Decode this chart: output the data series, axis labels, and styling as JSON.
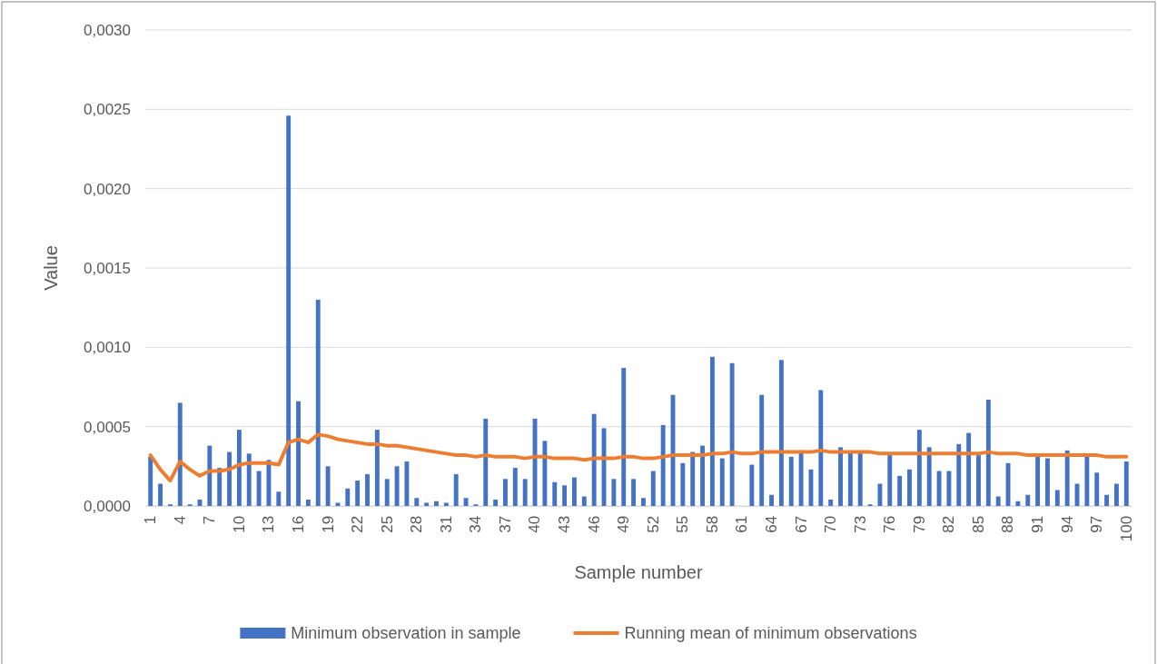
{
  "chart_data": {
    "type": "bar",
    "xlabel": "Sample number",
    "ylabel": "Value",
    "categories": [
      "1",
      null,
      null,
      "4",
      null,
      null,
      "7",
      null,
      null,
      "10",
      null,
      null,
      "13",
      null,
      null,
      "16",
      null,
      null,
      "19",
      null,
      null,
      "22",
      null,
      null,
      "25",
      null,
      null,
      "28",
      null,
      null,
      "31",
      null,
      null,
      "34",
      null,
      null,
      "37",
      null,
      null,
      "40",
      null,
      null,
      "43",
      null,
      null,
      "46",
      null,
      null,
      "49",
      null,
      null,
      "52",
      null,
      null,
      "55",
      null,
      null,
      "58",
      null,
      null,
      "61",
      null,
      null,
      "64",
      null,
      null,
      "67",
      null,
      null,
      "70",
      null,
      null,
      "73",
      null,
      null,
      "76",
      null,
      null,
      "79",
      null,
      null,
      "82",
      null,
      null,
      "85",
      null,
      null,
      "88",
      null,
      null,
      "91",
      null,
      null,
      "94",
      null,
      null,
      "97",
      null,
      null,
      "100"
    ],
    "series": [
      {
        "name": "Minimum observation in sample",
        "color": "#4472c4",
        "values": [
          0.00031,
          0.00014,
          1e-05,
          0.00065,
          1e-05,
          4e-05,
          0.00038,
          0.00024,
          0.00034,
          0.00048,
          0.00033,
          0.00022,
          0.00029,
          9e-05,
          0.00246,
          0.00066,
          4e-05,
          0.0013,
          0.00025,
          2e-05,
          0.00011,
          0.00016,
          0.0002,
          0.00048,
          0.00017,
          0.00025,
          0.00028,
          5e-05,
          2e-05,
          3e-05,
          2e-05,
          0.0002,
          5e-05,
          1e-05,
          0.00055,
          4e-05,
          0.00017,
          0.00024,
          0.00017,
          0.00055,
          0.00041,
          0.00015,
          0.00013,
          0.00018,
          6e-05,
          0.00058,
          0.00049,
          0.00017,
          0.00087,
          0.00017,
          5e-05,
          0.00022,
          0.00051,
          0.0007,
          0.00027,
          0.00034,
          0.00038,
          0.00094,
          0.0003,
          0.0009,
          0,
          0.00026,
          0.0007,
          7e-05,
          0.00092,
          0.00031,
          0.00035,
          0.00023,
          0.00073,
          4e-05,
          0.00037,
          0.00034,
          0.00034,
          1e-05,
          0.00014,
          0.00032,
          0.00019,
          0.00023,
          0.00048,
          0.00037,
          0.00022,
          0.00022,
          0.00039,
          0.00046,
          0.00032,
          0.00067,
          6e-05,
          0.00027,
          3e-05,
          7e-05,
          0.00031,
          0.0003,
          0.0001,
          0.00035,
          0.00014,
          0.00031,
          0.00021,
          7e-05,
          0.00014,
          0.00028
        ]
      },
      {
        "name": "Running mean of minimum observations",
        "type": "line",
        "color": "#ed7d31",
        "values": [
          0.00032,
          0.00023,
          0.00016,
          0.00028,
          0.00023,
          0.00019,
          0.00022,
          0.00022,
          0.00023,
          0.00026,
          0.00027,
          0.00027,
          0.00027,
          0.00026,
          0.0004,
          0.00042,
          0.0004,
          0.00045,
          0.00044,
          0.00042,
          0.00041,
          0.0004,
          0.00039,
          0.00039,
          0.00038,
          0.00038,
          0.00037,
          0.00036,
          0.00035,
          0.00034,
          0.00033,
          0.00032,
          0.00032,
          0.00031,
          0.00032,
          0.00031,
          0.00031,
          0.00031,
          0.0003,
          0.00031,
          0.00031,
          0.0003,
          0.0003,
          0.0003,
          0.00029,
          0.0003,
          0.0003,
          0.0003,
          0.00031,
          0.00031,
          0.0003,
          0.0003,
          0.00031,
          0.00032,
          0.00032,
          0.00032,
          0.00032,
          0.00033,
          0.00033,
          0.00034,
          0.00033,
          0.00033,
          0.00034,
          0.00034,
          0.00034,
          0.00034,
          0.00034,
          0.00034,
          0.00035,
          0.00034,
          0.00034,
          0.00034,
          0.00034,
          0.00034,
          0.00033,
          0.00033,
          0.00033,
          0.00033,
          0.00033,
          0.00033,
          0.00033,
          0.00033,
          0.00033,
          0.00033,
          0.00033,
          0.00034,
          0.00033,
          0.00033,
          0.00033,
          0.00032,
          0.00032,
          0.00032,
          0.00032,
          0.00032,
          0.00032,
          0.00032,
          0.00032,
          0.00031,
          0.00031,
          0.00031
        ]
      }
    ],
    "ylim": [
      0,
      0.003
    ],
    "yticks": [
      {
        "value": 0,
        "label": "0,0000"
      },
      {
        "value": 0.0005,
        "label": "0,0005"
      },
      {
        "value": 0.001,
        "label": "0,0010"
      },
      {
        "value": 0.0015,
        "label": "0,0015"
      },
      {
        "value": 0.002,
        "label": "0,0020"
      },
      {
        "value": 0.0025,
        "label": "0,0025"
      },
      {
        "value": 0.003,
        "label": "0,0030"
      }
    ],
    "grid": "y",
    "legend": "bottom"
  }
}
